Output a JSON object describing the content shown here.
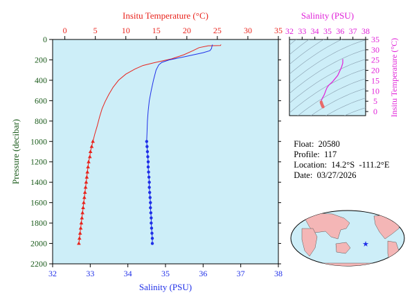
{
  "chart_data": [
    {
      "type": "line",
      "id": "profile",
      "top_axis_label": "Insitu Temperature (°C)",
      "bottom_axis_label": "Salinity (PSU)",
      "ylabel": "Pressure (decibar)",
      "temp_range": [
        -2,
        35
      ],
      "temp_ticks": [
        0,
        5,
        10,
        15,
        20,
        25,
        30,
        35
      ],
      "sal_range": [
        32,
        38
      ],
      "sal_ticks": [
        32,
        33,
        34,
        35,
        36,
        37,
        38
      ],
      "pressure_range": [
        0,
        2200
      ],
      "pressure_ticks": [
        0,
        200,
        400,
        600,
        800,
        1000,
        1200,
        1400,
        1600,
        1800,
        2000,
        2200
      ],
      "temperature": {
        "color": "#e8231c",
        "points": [
          [
            25.6,
            50
          ],
          [
            25.5,
            60
          ],
          [
            23.5,
            62
          ],
          [
            22.0,
            80
          ],
          [
            21.0,
            110
          ],
          [
            19.5,
            150
          ],
          [
            17.5,
            190
          ],
          [
            14.5,
            230
          ],
          [
            12.8,
            255
          ],
          [
            11.5,
            290
          ],
          [
            10.0,
            340
          ],
          [
            8.8,
            400
          ],
          [
            7.9,
            470
          ],
          [
            7.2,
            540
          ],
          [
            6.6,
            610
          ],
          [
            6.1,
            680
          ],
          [
            5.7,
            760
          ],
          [
            5.3,
            850
          ],
          [
            4.9,
            930
          ],
          [
            4.6,
            1000
          ]
        ],
        "marked_points": [
          [
            4.6,
            1000
          ],
          [
            4.4,
            1050
          ],
          [
            4.2,
            1100
          ],
          [
            4.1,
            1150
          ],
          [
            3.9,
            1200
          ],
          [
            3.8,
            1250
          ],
          [
            3.7,
            1300
          ],
          [
            3.6,
            1350
          ],
          [
            3.5,
            1400
          ],
          [
            3.4,
            1450
          ],
          [
            3.3,
            1500
          ],
          [
            3.2,
            1550
          ],
          [
            3.1,
            1600
          ],
          [
            3.0,
            1650
          ],
          [
            2.9,
            1700
          ],
          [
            2.8,
            1750
          ],
          [
            2.7,
            1800
          ],
          [
            2.6,
            1850
          ],
          [
            2.5,
            1900
          ],
          [
            2.4,
            1950
          ],
          [
            2.3,
            2000
          ]
        ]
      },
      "salinity": {
        "color": "#1f2fe8",
        "points": [
          [
            36.25,
            50
          ],
          [
            36.24,
            60
          ],
          [
            36.22,
            90
          ],
          [
            36.18,
            110
          ],
          [
            36.0,
            130
          ],
          [
            35.5,
            170
          ],
          [
            35.1,
            200
          ],
          [
            34.9,
            225
          ],
          [
            34.82,
            250
          ],
          [
            34.75,
            300
          ],
          [
            34.68,
            400
          ],
          [
            34.62,
            500
          ],
          [
            34.57,
            600
          ],
          [
            34.54,
            700
          ],
          [
            34.52,
            800
          ],
          [
            34.51,
            900
          ],
          [
            34.5,
            1000
          ]
        ],
        "marked_points": [
          [
            34.5,
            1000
          ],
          [
            34.51,
            1050
          ],
          [
            34.52,
            1100
          ],
          [
            34.53,
            1150
          ],
          [
            34.54,
            1200
          ],
          [
            34.54,
            1250
          ],
          [
            34.55,
            1300
          ],
          [
            34.56,
            1350
          ],
          [
            34.57,
            1400
          ],
          [
            34.57,
            1450
          ],
          [
            34.58,
            1500
          ],
          [
            34.59,
            1550
          ],
          [
            34.6,
            1600
          ],
          [
            34.6,
            1650
          ],
          [
            34.61,
            1700
          ],
          [
            34.62,
            1750
          ],
          [
            34.62,
            1800
          ],
          [
            34.63,
            1850
          ],
          [
            34.64,
            1900
          ],
          [
            34.65,
            1950
          ],
          [
            34.65,
            2000
          ]
        ]
      }
    },
    {
      "type": "scatter",
      "id": "ts_diagram",
      "top_axis_label": "Salinity (PSU)",
      "right_axis_label": "Insitu Temperature (°C)",
      "sal_range": [
        32,
        38
      ],
      "sal_ticks": [
        32,
        33,
        34,
        35,
        36,
        37,
        38
      ],
      "temp_range": [
        -2,
        35
      ],
      "temp_ticks": [
        0,
        5,
        10,
        15,
        20,
        25,
        30,
        35
      ],
      "color": "#e020d8",
      "marker_color": "#e86a6a",
      "points": [
        [
          36.2,
          25.5
        ],
        [
          36.2,
          23.5
        ],
        [
          36.1,
          21.5
        ],
        [
          35.8,
          17.5
        ],
        [
          35.4,
          14.5
        ],
        [
          35.1,
          12.8
        ],
        [
          34.95,
          11.5
        ],
        [
          34.85,
          10.0
        ],
        [
          34.78,
          8.8
        ],
        [
          34.72,
          7.9
        ],
        [
          34.66,
          7.2
        ],
        [
          34.6,
          6.6
        ],
        [
          34.57,
          6.1
        ],
        [
          34.54,
          5.7
        ],
        [
          34.52,
          5.3
        ],
        [
          34.5,
          4.9
        ],
        [
          34.5,
          4.6
        ]
      ],
      "marked_points": [
        [
          34.5,
          4.6
        ],
        [
          34.52,
          4.2
        ],
        [
          34.53,
          3.9
        ],
        [
          34.55,
          3.6
        ],
        [
          34.57,
          3.3
        ],
        [
          34.59,
          3.0
        ],
        [
          34.61,
          2.7
        ],
        [
          34.63,
          2.4
        ],
        [
          34.65,
          2.3
        ]
      ]
    }
  ],
  "float_info": {
    "float_label": "Float:",
    "float_value": "20580",
    "profile_label": "Profile:",
    "profile_value": "117",
    "location_label": "Location:",
    "location_value": "14.2°S  -111.2°E",
    "date_label": "Date:",
    "date_value": "03/27/2026"
  },
  "map": {
    "marker": "star",
    "marker_color": "#1f2fe8",
    "ocean_color": "#cdeef8",
    "land_color": "#f4b6b6"
  }
}
